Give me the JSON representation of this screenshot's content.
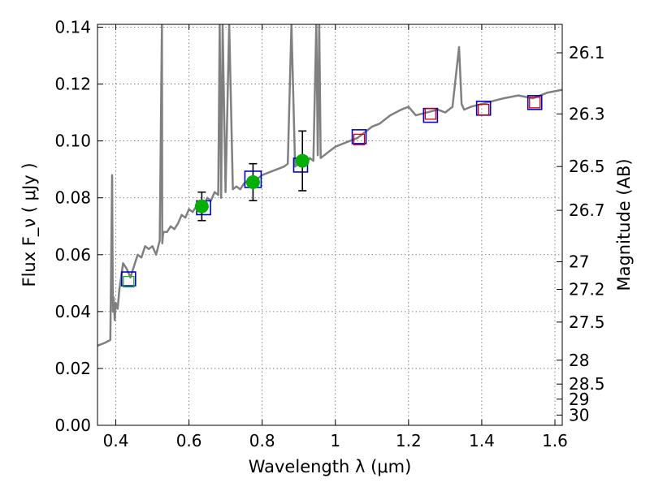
{
  "chart_data": {
    "type": "line",
    "title": "",
    "xlabel": "Wavelength  λ (μm)",
    "ylabel": "Flux  F_ν  ( μJy )",
    "ylabel_right": "Magnitude (AB)",
    "xlim": [
      0.35,
      1.62
    ],
    "ylim": [
      0.0,
      0.141
    ],
    "grid": true,
    "x_ticks": [
      0.4,
      0.6,
      0.8,
      1.0,
      1.2,
      1.4,
      1.6
    ],
    "x_tick_labels": [
      "0.4",
      "0.6",
      "0.8",
      "1",
      "1.2",
      "1.4",
      "1.6"
    ],
    "y_ticks": [
      0.0,
      0.02,
      0.04,
      0.06,
      0.08,
      0.1,
      0.12,
      0.14
    ],
    "y_tick_labels": [
      "0.00",
      "0.02",
      "0.04",
      "0.06",
      "0.08",
      "0.10",
      "0.12",
      "0.14"
    ],
    "right_ticks": [
      {
        "label": "26.1",
        "flux": 0.131
      },
      {
        "label": "26.3",
        "flux": 0.1095
      },
      {
        "label": "26.5",
        "flux": 0.091
      },
      {
        "label": "26.7",
        "flux": 0.0756
      },
      {
        "label": "27",
        "flux": 0.0575
      },
      {
        "label": "27.2",
        "flux": 0.0478
      },
      {
        "label": "27.5",
        "flux": 0.0363
      },
      {
        "label": "28",
        "flux": 0.0229
      },
      {
        "label": "28.5",
        "flux": 0.0145
      },
      {
        "label": "29",
        "flux": 0.0092
      },
      {
        "label": "30",
        "flux": 0.0036
      }
    ],
    "colors": {
      "spectrum": "#808080",
      "model_box": "#0000cc",
      "observed_box": "#cc0000",
      "observed_box_green": "#22aa22",
      "photometry_point": "#00b000",
      "error_bar": "#000000"
    },
    "series": [
      {
        "style": "spectrum",
        "x": [
          0.35,
          0.37,
          0.385,
          0.39,
          0.392,
          0.394,
          0.397,
          0.4,
          0.405,
          0.41,
          0.42,
          0.43,
          0.44,
          0.45,
          0.46,
          0.47,
          0.48,
          0.49,
          0.5,
          0.51,
          0.52,
          0.526,
          0.527,
          0.529,
          0.531,
          0.54,
          0.55,
          0.56,
          0.57,
          0.58,
          0.59,
          0.6,
          0.61,
          0.62,
          0.63,
          0.64,
          0.65,
          0.66,
          0.67,
          0.68,
          0.684,
          0.688,
          0.692,
          0.7,
          0.71,
          0.72,
          0.73,
          0.74,
          0.75,
          0.76,
          0.77,
          0.78,
          0.8,
          0.82,
          0.84,
          0.86,
          0.87,
          0.88,
          0.89,
          0.9,
          0.91,
          0.92,
          0.93,
          0.94,
          0.948,
          0.952,
          0.956,
          0.96,
          0.98,
          1.0,
          1.02,
          1.04,
          1.06,
          1.08,
          1.1,
          1.12,
          1.15,
          1.18,
          1.2,
          1.22,
          1.25,
          1.28,
          1.3,
          1.32,
          1.338,
          1.345,
          1.352,
          1.37,
          1.4,
          1.43,
          1.46,
          1.5,
          1.54,
          1.58,
          1.62
        ],
        "y": [
          0.028,
          0.029,
          0.03,
          0.088,
          0.04,
          0.045,
          0.037,
          0.043,
          0.041,
          0.048,
          0.057,
          0.055,
          0.052,
          0.056,
          0.06,
          0.059,
          0.063,
          0.062,
          0.063,
          0.06,
          0.065,
          0.141,
          0.064,
          0.067,
          0.068,
          0.068,
          0.07,
          0.069,
          0.071,
          0.074,
          0.073,
          0.076,
          0.075,
          0.077,
          0.078,
          0.077,
          0.08,
          0.079,
          0.082,
          0.081,
          0.141,
          0.08,
          0.141,
          0.082,
          0.141,
          0.083,
          0.084,
          0.083,
          0.085,
          0.086,
          0.085,
          0.086,
          0.088,
          0.089,
          0.09,
          0.091,
          0.092,
          0.141,
          0.091,
          0.092,
          0.093,
          0.092,
          0.094,
          0.093,
          0.141,
          0.095,
          0.141,
          0.094,
          0.096,
          0.098,
          0.099,
          0.1,
          0.101,
          0.103,
          0.105,
          0.106,
          0.109,
          0.111,
          0.112,
          0.109,
          0.11,
          0.111,
          0.11,
          0.112,
          0.133,
          0.113,
          0.111,
          0.112,
          0.113,
          0.114,
          0.115,
          0.116,
          0.115,
          0.117,
          0.118
        ]
      },
      {
        "style": "model_boxes",
        "x": [
          0.435,
          0.64,
          0.775,
          0.905,
          1.065,
          1.26,
          1.405,
          1.545
        ],
        "y": [
          0.0515,
          0.0765,
          0.0865,
          0.0915,
          0.1015,
          0.109,
          0.1115,
          0.1135
        ]
      },
      {
        "style": "observed_boxes",
        "x": [
          0.435,
          1.065,
          1.26,
          1.405,
          1.545
        ],
        "y": [
          0.0505,
          0.1005,
          0.1095,
          0.111,
          0.1135
        ]
      },
      {
        "style": "photometry_points",
        "x": [
          0.635,
          0.775,
          0.91
        ],
        "y": [
          0.077,
          0.0855,
          0.093
        ],
        "err": [
          0.005,
          0.0065,
          0.0105
        ]
      }
    ]
  }
}
